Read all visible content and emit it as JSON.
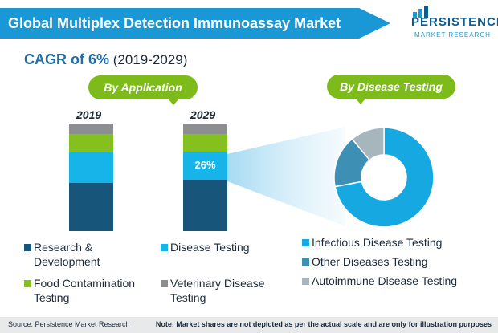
{
  "header": {
    "title": "Global Multiplex Detection Immunoassay Market",
    "logo_main": "PERSISTENCE",
    "logo_sub": "MARKET RESEARCH"
  },
  "cagr": {
    "label": "CAGR of 6%",
    "period": "(2019-2029)"
  },
  "sections": {
    "by_application": "By Application",
    "by_disease": "By Disease Testing"
  },
  "colors": {
    "research": "#17557a",
    "disease": "#16b4e8",
    "food": "#84c11f",
    "veterinary": "#8c8e92",
    "infectious": "#16a9e1",
    "other": "#3d8fb4",
    "autoimmune": "#a7b5bd",
    "pill": "#7cbb19"
  },
  "chart_data": [
    {
      "type": "bar",
      "categories": [
        "2019",
        "2029"
      ],
      "series": [
        {
          "name": "Research & Development",
          "values": [
            45,
            48
          ],
          "color_key": "research"
        },
        {
          "name": "Disease Testing",
          "values": [
            28,
            26
          ],
          "color_key": "disease"
        },
        {
          "name": "Food Contamination Testing",
          "values": [
            17,
            16
          ],
          "color_key": "food"
        },
        {
          "name": "Veterinary Disease Testing",
          "values": [
            10,
            10
          ],
          "color_key": "veterinary"
        }
      ],
      "data_labels": [
        {
          "category": "2029",
          "series": "Disease Testing",
          "text": "26%"
        }
      ],
      "stacked": true
    },
    {
      "type": "pie",
      "donut": true,
      "labels": [
        "Infectious Disease Testing",
        "Other Diseases Testing",
        "Autoimmune Disease Testing"
      ],
      "values": [
        72,
        17,
        11
      ]
    }
  ],
  "legend_left": [
    {
      "label": "Research & Development",
      "color_key": "research"
    },
    {
      "label": "Disease Testing",
      "color_key": "disease"
    },
    {
      "label": "Food Contamination Testing",
      "color_key": "food"
    },
    {
      "label": "Veterinary Disease Testing",
      "color_key": "veterinary"
    }
  ],
  "legend_right": [
    {
      "label": "Infectious Disease Testing",
      "color_key": "infectious"
    },
    {
      "label": "Other Diseases Testing",
      "color_key": "other"
    },
    {
      "label": "Autoimmune Disease Testing",
      "color_key": "autoimmune"
    }
  ],
  "footer": {
    "source": "Source: Persistence Market Research",
    "note": "Note: Market shares are not depicted as per the actual scale and are only for illustration purposes"
  }
}
